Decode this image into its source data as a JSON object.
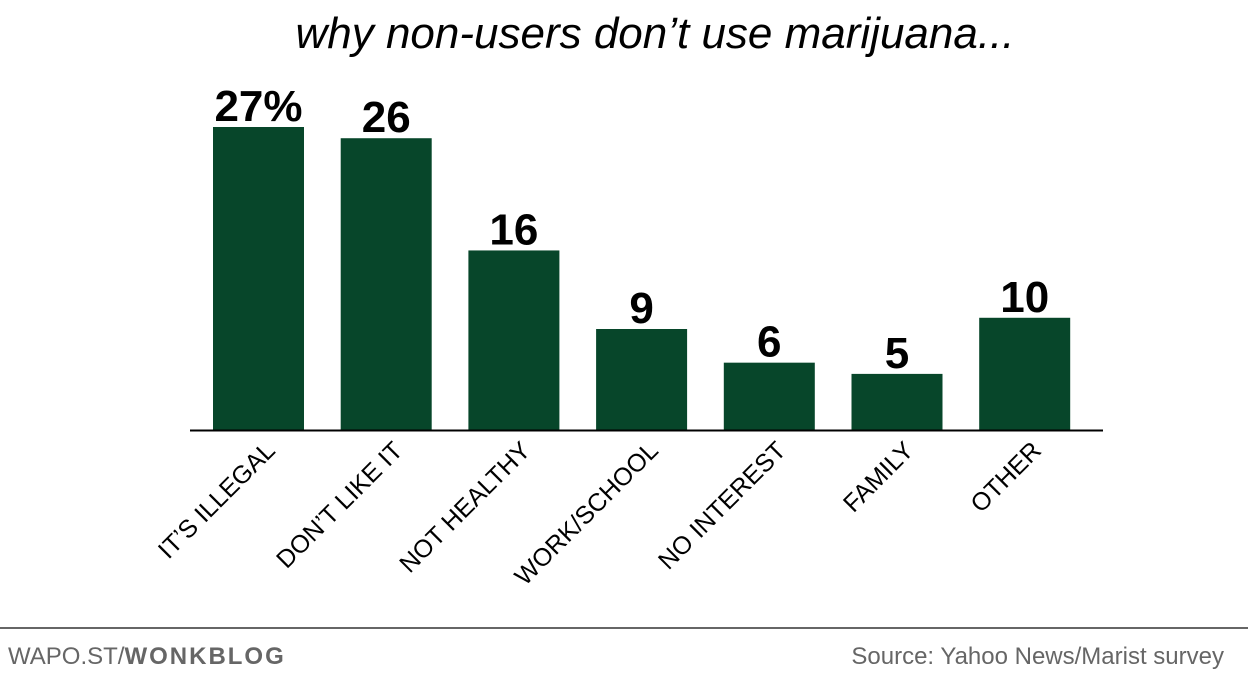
{
  "chart_data": {
    "type": "bar",
    "title": "why non-users don’t use marijuana...",
    "categories": [
      "IT’S ILLEGAL",
      "DON’T LIKE IT",
      "NOT HEALTHY",
      "WORK/SCHOOL",
      "NO INTEREST",
      "FAMILY",
      "OTHER"
    ],
    "values": [
      27,
      26,
      16,
      9,
      6,
      5,
      10
    ],
    "data_labels": [
      "27%",
      "26",
      "16",
      "9",
      "6",
      "5",
      "10"
    ],
    "ylim": [
      0,
      27
    ],
    "grid": false,
    "bar_color": "#07462a"
  },
  "footer": {
    "left_prefix": "WAPO.ST/",
    "left_bold": "WONKBLOG",
    "source": "Source: Yahoo News/Marist survey"
  }
}
